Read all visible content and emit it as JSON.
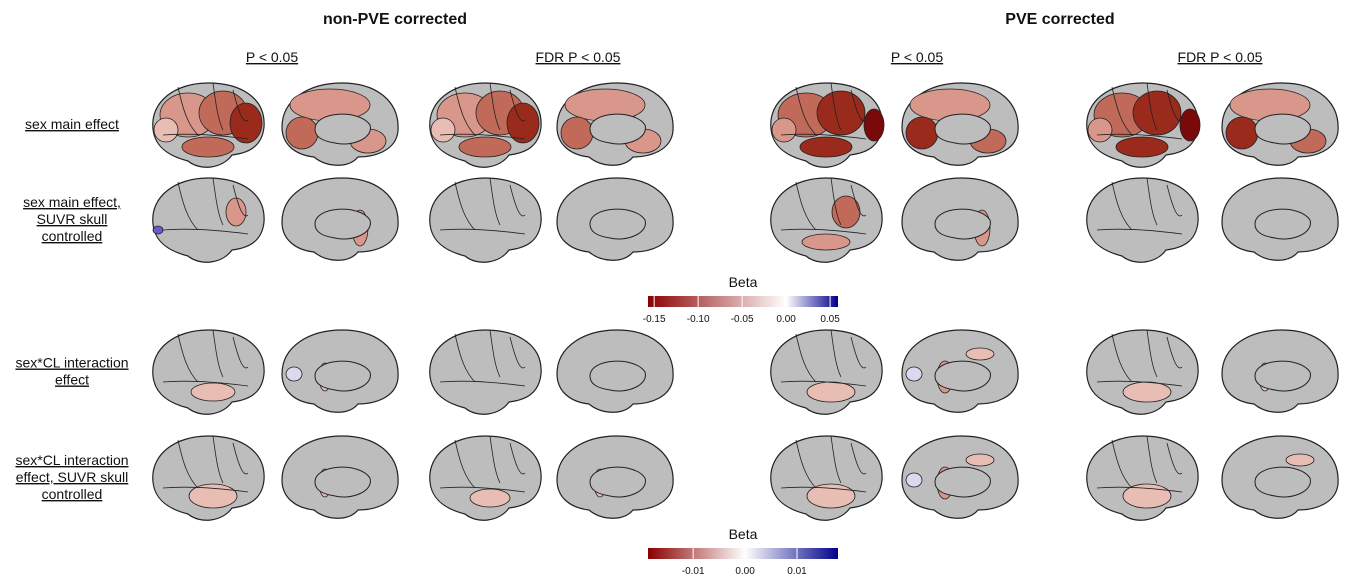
{
  "groups": [
    "non-PVE corrected",
    "PVE corrected"
  ],
  "columns": [
    "P < 0.05",
    "FDR P < 0.05",
    "P < 0.05",
    "FDR P < 0.05"
  ],
  "rows": [
    [
      "sex main effect"
    ],
    [
      "sex main effect,",
      "SUVR skull",
      "controlled"
    ],
    [
      "sex*CL interaction",
      "effect"
    ],
    [
      "sex*CL interaction",
      "effect, SUVR skull",
      "controlled"
    ]
  ],
  "colorbars": [
    {
      "label": "Beta",
      "lim": [
        -0.157,
        0.059
      ],
      "ticks": [
        -0.15,
        {
          "value": -0.1,
          "label": "-0.10"
        },
        {
          "value": -0.05,
          "label": "-0.05"
        },
        {
          "value": 0,
          "label": "0.00"
        },
        0.05
      ],
      "colors": [
        "#8b0000",
        "#ffffff",
        "#00008b"
      ]
    },
    {
      "label": "Beta",
      "lim": [
        -0.0187,
        0.0179
      ],
      "ticks": [
        -0.01,
        {
          "value": 0,
          "label": "0.00"
        },
        0.01
      ],
      "colors": [
        "#8b0000",
        "#ffffff",
        "#00008b"
      ]
    }
  ]
}
